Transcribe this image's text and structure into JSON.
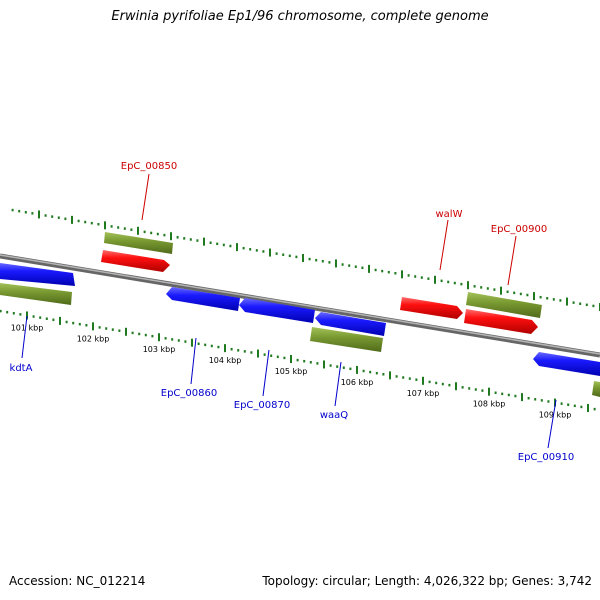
{
  "title": "Erwinia pyrifoliae Ep1/96 chromosome, complete genome",
  "footer": {
    "accession": "Accession: NC_012214",
    "topology": "Topology: circular; Length: 4,026,322 bp; Genes: 3,742"
  },
  "colors": {
    "backbone": "#8c8c8c",
    "tick": "#1f7a1f",
    "gene_forward": "#ee0000",
    "gene_reverse": "#0000ee",
    "gene_other": "#6b8e23",
    "label_red": "#cc0000",
    "label_blue": "#0000cc"
  },
  "ticks": [
    {
      "label": "101 kbp"
    },
    {
      "label": "102 kbp"
    },
    {
      "label": "103 kbp"
    },
    {
      "label": "104 kbp"
    },
    {
      "label": "105 kbp"
    },
    {
      "label": "106 kbp"
    },
    {
      "label": "107 kbp"
    },
    {
      "label": "108 kbp"
    },
    {
      "label": "109 kbp"
    }
  ],
  "gene_labels": [
    {
      "name": "EpC_00850",
      "color": "red"
    },
    {
      "name": "walW",
      "color": "red"
    },
    {
      "name": "EpC_00900",
      "color": "red"
    },
    {
      "name": "kdtA",
      "color": "blue"
    },
    {
      "name": "EpC_00860",
      "color": "blue"
    },
    {
      "name": "EpC_00870",
      "color": "blue"
    },
    {
      "name": "waaQ",
      "color": "blue"
    },
    {
      "name": "EpC_00910",
      "color": "blue"
    }
  ]
}
